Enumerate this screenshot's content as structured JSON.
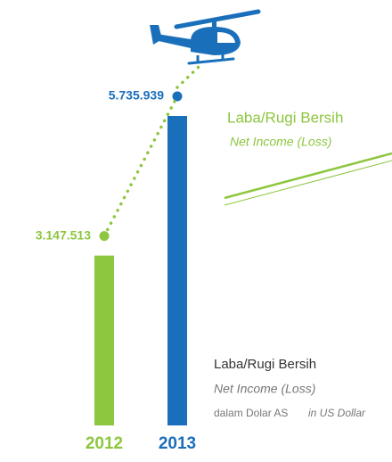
{
  "chart_data": {
    "type": "bar",
    "title": "Laba/Rugi Bersih",
    "subtitle": "Net Income (Loss)",
    "annotations": [
      "Laba/Rugi Bersih",
      "Net Income (Loss)",
      "dalam Dolar AS",
      "in US Dollar"
    ],
    "categories": [
      "2012",
      "2013"
    ],
    "values": [
      3147513,
      5735939
    ],
    "value_labels": [
      "3.147.513",
      "5.735.939"
    ],
    "colors": [
      "#8dc63f",
      "#1a6fbb"
    ]
  }
}
